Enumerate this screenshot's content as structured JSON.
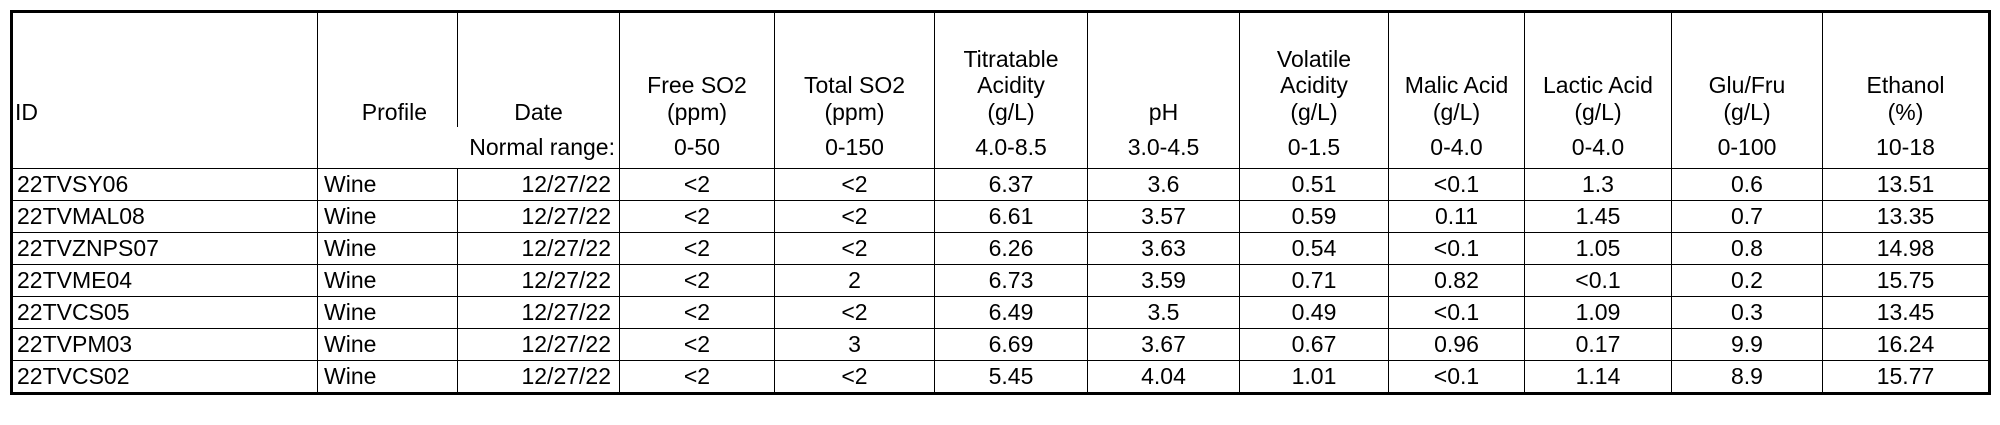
{
  "headers": {
    "id": "ID",
    "profile": "Profile",
    "date": "Date",
    "free_so2": [
      "Free SO2",
      "(ppm)"
    ],
    "total_so2": [
      "Total SO2",
      "(ppm)"
    ],
    "ta": [
      "Titratable",
      "Acidity",
      "(g/L)"
    ],
    "ph": "pH",
    "va": [
      "Volatile",
      "Acidity",
      "(g/L)"
    ],
    "malic": [
      "Malic Acid",
      "(g/L)"
    ],
    "lactic": [
      "Lactic Acid",
      "(g/L)"
    ],
    "glufru": [
      "Glu/Fru",
      "(g/L)"
    ],
    "ethanol": [
      "Ethanol",
      "(%)"
    ]
  },
  "normal_range": {
    "label": "Normal range:",
    "free_so2": "0-50",
    "total_so2": "0-150",
    "ta": "4.0-8.5",
    "ph": "3.0-4.5",
    "va": "0-1.5",
    "malic": "0-4.0",
    "lactic": "0-4.0",
    "glufru": "0-100",
    "ethanol": "10-18"
  },
  "rows": [
    {
      "id": "22TVSY06",
      "profile": "Wine",
      "date": "12/27/22",
      "free_so2": "<2",
      "total_so2": "<2",
      "ta": "6.37",
      "ph": "3.6",
      "va": "0.51",
      "malic": "<0.1",
      "lactic": "1.3",
      "glufru": "0.6",
      "ethanol": "13.51"
    },
    {
      "id": "22TVMAL08",
      "profile": "Wine",
      "date": "12/27/22",
      "free_so2": "<2",
      "total_so2": "<2",
      "ta": "6.61",
      "ph": "3.57",
      "va": "0.59",
      "malic": "0.11",
      "lactic": "1.45",
      "glufru": "0.7",
      "ethanol": "13.35"
    },
    {
      "id": "22TVZNPS07",
      "profile": "Wine",
      "date": "12/27/22",
      "free_so2": "<2",
      "total_so2": "<2",
      "ta": "6.26",
      "ph": "3.63",
      "va": "0.54",
      "malic": "<0.1",
      "lactic": "1.05",
      "glufru": "0.8",
      "ethanol": "14.98"
    },
    {
      "id": "22TVME04",
      "profile": "Wine",
      "date": "12/27/22",
      "free_so2": "<2",
      "total_so2": "2",
      "ta": "6.73",
      "ph": "3.59",
      "va": "0.71",
      "malic": "0.82",
      "lactic": "<0.1",
      "glufru": "0.2",
      "ethanol": "15.75"
    },
    {
      "id": "22TVCS05",
      "profile": "Wine",
      "date": "12/27/22",
      "free_so2": "<2",
      "total_so2": "<2",
      "ta": "6.49",
      "ph": "3.5",
      "va": "0.49",
      "malic": "<0.1",
      "lactic": "1.09",
      "glufru": "0.3",
      "ethanol": "13.45"
    },
    {
      "id": "22TVPM03",
      "profile": "Wine",
      "date": "12/27/22",
      "free_so2": "<2",
      "total_so2": "3",
      "ta": "6.69",
      "ph": "3.67",
      "va": "0.67",
      "malic": "0.96",
      "lactic": "0.17",
      "glufru": "9.9",
      "ethanol": "16.24"
    },
    {
      "id": "22TVCS02",
      "profile": "Wine",
      "date": "12/27/22",
      "free_so2": "<2",
      "total_so2": "<2",
      "ta": "5.45",
      "ph": "4.04",
      "va": "1.01",
      "malic": "<0.1",
      "lactic": "1.14",
      "glufru": "8.9",
      "ethanol": "15.77"
    }
  ]
}
